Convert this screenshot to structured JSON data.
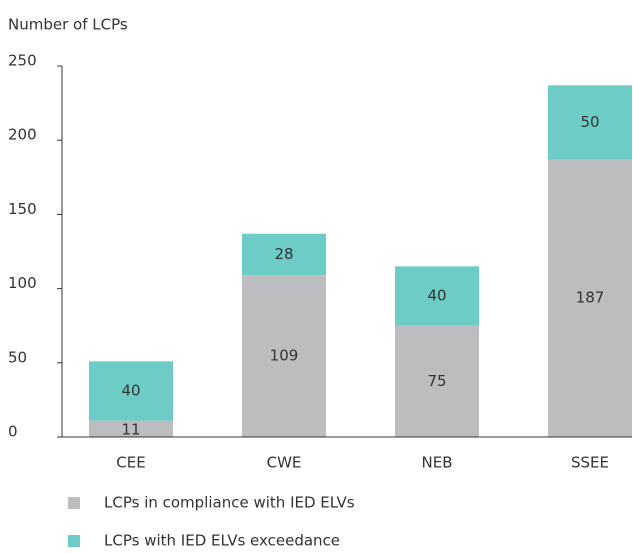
{
  "chart_data": {
    "type": "stacked_bar",
    "y_axis_label": "Number of LCPs",
    "categories": [
      "CEE",
      "CWE",
      "NEB",
      "SSEE"
    ],
    "series": [
      {
        "name": "LCPs in compliance with IED ELVs",
        "color": "#bdbdc0",
        "values": [
          11,
          109,
          75,
          187
        ]
      },
      {
        "name": "LCPs with IED ELVs exceedance",
        "color": "#6dcdc6",
        "values": [
          40,
          28,
          40,
          50
        ]
      }
    ],
    "ylim": [
      0,
      250
    ],
    "yticks": [
      0,
      50,
      100,
      150,
      200,
      250
    ]
  }
}
